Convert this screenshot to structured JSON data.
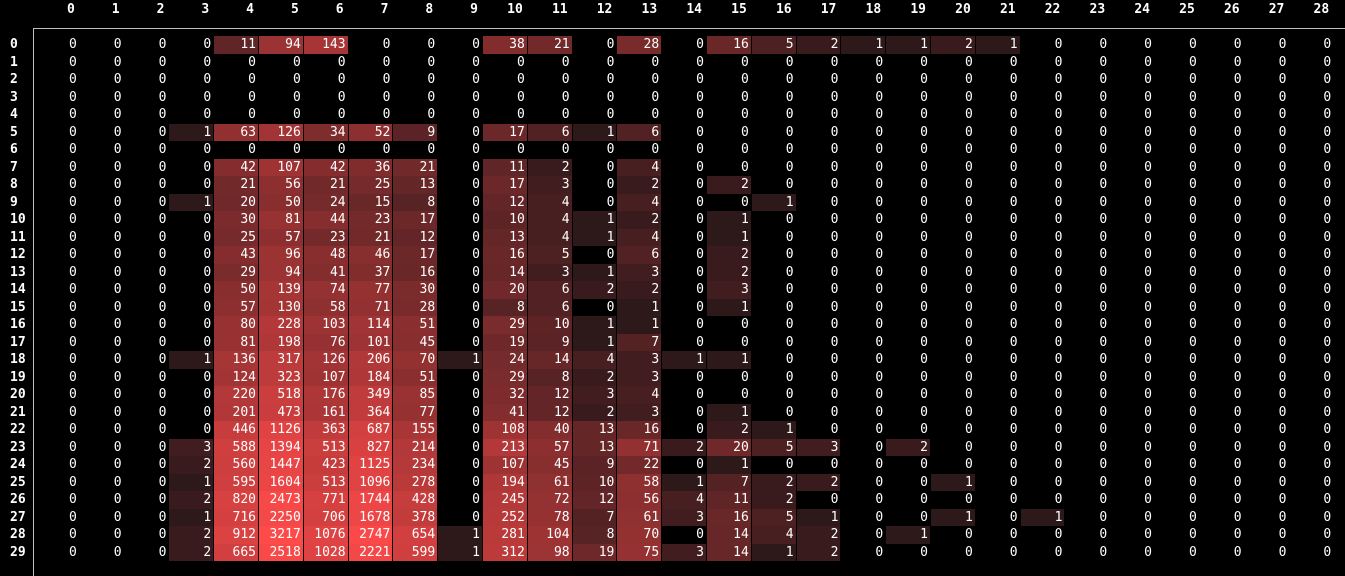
{
  "chart_data": {
    "type": "heatmap",
    "columns": [
      "0",
      "1",
      "2",
      "3",
      "4",
      "5",
      "6",
      "7",
      "8",
      "9",
      "10",
      "11",
      "12",
      "13",
      "14",
      "15",
      "16",
      "17",
      "18",
      "19",
      "20",
      "21",
      "22",
      "23",
      "24",
      "25",
      "26",
      "27",
      "28"
    ],
    "rows": [
      "0",
      "1",
      "2",
      "3",
      "4",
      "5",
      "6",
      "7",
      "8",
      "9",
      "10",
      "11",
      "12",
      "13",
      "14",
      "15",
      "16",
      "17",
      "18",
      "19",
      "20",
      "21",
      "22",
      "23",
      "24",
      "25",
      "26",
      "27",
      "28",
      "29"
    ],
    "values": [
      [
        0,
        0,
        0,
        0,
        11,
        94,
        143,
        0,
        0,
        0,
        38,
        21,
        0,
        28,
        0,
        16,
        5,
        2,
        1,
        1,
        2,
        1,
        0,
        0,
        0,
        0,
        0,
        0,
        0
      ],
      [
        0,
        0,
        0,
        0,
        0,
        0,
        0,
        0,
        0,
        0,
        0,
        0,
        0,
        0,
        0,
        0,
        0,
        0,
        0,
        0,
        0,
        0,
        0,
        0,
        0,
        0,
        0,
        0,
        0
      ],
      [
        0,
        0,
        0,
        0,
        0,
        0,
        0,
        0,
        0,
        0,
        0,
        0,
        0,
        0,
        0,
        0,
        0,
        0,
        0,
        0,
        0,
        0,
        0,
        0,
        0,
        0,
        0,
        0,
        0
      ],
      [
        0,
        0,
        0,
        0,
        0,
        0,
        0,
        0,
        0,
        0,
        0,
        0,
        0,
        0,
        0,
        0,
        0,
        0,
        0,
        0,
        0,
        0,
        0,
        0,
        0,
        0,
        0,
        0,
        0
      ],
      [
        0,
        0,
        0,
        0,
        0,
        0,
        0,
        0,
        0,
        0,
        0,
        0,
        0,
        0,
        0,
        0,
        0,
        0,
        0,
        0,
        0,
        0,
        0,
        0,
        0,
        0,
        0,
        0,
        0
      ],
      [
        0,
        0,
        0,
        1,
        63,
        126,
        34,
        52,
        9,
        0,
        17,
        6,
        1,
        6,
        0,
        0,
        0,
        0,
        0,
        0,
        0,
        0,
        0,
        0,
        0,
        0,
        0,
        0,
        0
      ],
      [
        0,
        0,
        0,
        0,
        0,
        0,
        0,
        0,
        0,
        0,
        0,
        0,
        0,
        0,
        0,
        0,
        0,
        0,
        0,
        0,
        0,
        0,
        0,
        0,
        0,
        0,
        0,
        0,
        0
      ],
      [
        0,
        0,
        0,
        0,
        42,
        107,
        42,
        36,
        21,
        0,
        11,
        2,
        0,
        4,
        0,
        0,
        0,
        0,
        0,
        0,
        0,
        0,
        0,
        0,
        0,
        0,
        0,
        0,
        0
      ],
      [
        0,
        0,
        0,
        0,
        21,
        56,
        21,
        25,
        13,
        0,
        17,
        3,
        0,
        2,
        0,
        2,
        0,
        0,
        0,
        0,
        0,
        0,
        0,
        0,
        0,
        0,
        0,
        0,
        0
      ],
      [
        0,
        0,
        0,
        1,
        20,
        50,
        24,
        15,
        8,
        0,
        12,
        4,
        0,
        4,
        0,
        0,
        1,
        0,
        0,
        0,
        0,
        0,
        0,
        0,
        0,
        0,
        0,
        0,
        0
      ],
      [
        0,
        0,
        0,
        0,
        30,
        81,
        44,
        23,
        17,
        0,
        10,
        4,
        1,
        2,
        0,
        1,
        0,
        0,
        0,
        0,
        0,
        0,
        0,
        0,
        0,
        0,
        0,
        0,
        0
      ],
      [
        0,
        0,
        0,
        0,
        25,
        57,
        23,
        21,
        12,
        0,
        13,
        4,
        1,
        4,
        0,
        1,
        0,
        0,
        0,
        0,
        0,
        0,
        0,
        0,
        0,
        0,
        0,
        0,
        0
      ],
      [
        0,
        0,
        0,
        0,
        43,
        96,
        48,
        46,
        17,
        0,
        16,
        5,
        0,
        6,
        0,
        2,
        0,
        0,
        0,
        0,
        0,
        0,
        0,
        0,
        0,
        0,
        0,
        0,
        0
      ],
      [
        0,
        0,
        0,
        0,
        29,
        94,
        41,
        37,
        16,
        0,
        14,
        3,
        1,
        3,
        0,
        2,
        0,
        0,
        0,
        0,
        0,
        0,
        0,
        0,
        0,
        0,
        0,
        0,
        0
      ],
      [
        0,
        0,
        0,
        0,
        50,
        139,
        74,
        77,
        30,
        0,
        20,
        6,
        2,
        2,
        0,
        3,
        0,
        0,
        0,
        0,
        0,
        0,
        0,
        0,
        0,
        0,
        0,
        0,
        0
      ],
      [
        0,
        0,
        0,
        0,
        57,
        130,
        58,
        71,
        28,
        0,
        8,
        6,
        0,
        1,
        0,
        1,
        0,
        0,
        0,
        0,
        0,
        0,
        0,
        0,
        0,
        0,
        0,
        0,
        0
      ],
      [
        0,
        0,
        0,
        0,
        80,
        228,
        103,
        114,
        51,
        0,
        29,
        10,
        1,
        1,
        0,
        0,
        0,
        0,
        0,
        0,
        0,
        0,
        0,
        0,
        0,
        0,
        0,
        0,
        0
      ],
      [
        0,
        0,
        0,
        0,
        81,
        198,
        76,
        101,
        45,
        0,
        19,
        9,
        1,
        7,
        0,
        0,
        0,
        0,
        0,
        0,
        0,
        0,
        0,
        0,
        0,
        0,
        0,
        0,
        0
      ],
      [
        0,
        0,
        0,
        1,
        136,
        317,
        126,
        206,
        70,
        1,
        24,
        14,
        4,
        3,
        1,
        1,
        0,
        0,
        0,
        0,
        0,
        0,
        0,
        0,
        0,
        0,
        0,
        0,
        0
      ],
      [
        0,
        0,
        0,
        0,
        124,
        323,
        107,
        184,
        51,
        0,
        29,
        8,
        2,
        3,
        0,
        0,
        0,
        0,
        0,
        0,
        0,
        0,
        0,
        0,
        0,
        0,
        0,
        0,
        0
      ],
      [
        0,
        0,
        0,
        0,
        220,
        518,
        176,
        349,
        85,
        0,
        32,
        12,
        3,
        4,
        0,
        0,
        0,
        0,
        0,
        0,
        0,
        0,
        0,
        0,
        0,
        0,
        0,
        0,
        0
      ],
      [
        0,
        0,
        0,
        0,
        201,
        473,
        161,
        364,
        77,
        0,
        41,
        12,
        2,
        3,
        0,
        1,
        0,
        0,
        0,
        0,
        0,
        0,
        0,
        0,
        0,
        0,
        0,
        0,
        0
      ],
      [
        0,
        0,
        0,
        0,
        446,
        1126,
        363,
        687,
        155,
        0,
        108,
        40,
        13,
        16,
        0,
        2,
        1,
        0,
        0,
        0,
        0,
        0,
        0,
        0,
        0,
        0,
        0,
        0,
        0
      ],
      [
        0,
        0,
        0,
        3,
        588,
        1394,
        513,
        827,
        214,
        0,
        213,
        57,
        13,
        71,
        2,
        20,
        5,
        3,
        0,
        2,
        0,
        0,
        0,
        0,
        0,
        0,
        0,
        0,
        0
      ],
      [
        0,
        0,
        0,
        2,
        560,
        1447,
        423,
        1125,
        234,
        0,
        107,
        45,
        9,
        22,
        0,
        1,
        0,
        0,
        0,
        0,
        0,
        0,
        0,
        0,
        0,
        0,
        0,
        0,
        0
      ],
      [
        0,
        0,
        0,
        1,
        595,
        1604,
        513,
        1096,
        278,
        0,
        194,
        61,
        10,
        58,
        1,
        7,
        2,
        2,
        0,
        0,
        1,
        0,
        0,
        0,
        0,
        0,
        0,
        0,
        0
      ],
      [
        0,
        0,
        0,
        2,
        820,
        2473,
        771,
        1744,
        428,
        0,
        245,
        72,
        12,
        56,
        4,
        11,
        2,
        0,
        0,
        0,
        0,
        0,
        0,
        0,
        0,
        0,
        0,
        0,
        0
      ],
      [
        0,
        0,
        0,
        1,
        716,
        2250,
        706,
        1678,
        378,
        0,
        252,
        78,
        7,
        61,
        3,
        16,
        5,
        1,
        0,
        0,
        1,
        0,
        1,
        0,
        0,
        0,
        0,
        0,
        0
      ],
      [
        0,
        0,
        0,
        2,
        912,
        3217,
        1076,
        2747,
        654,
        1,
        281,
        104,
        8,
        70,
        0,
        14,
        4,
        2,
        0,
        1,
        0,
        0,
        0,
        0,
        0,
        0,
        0,
        0,
        0
      ],
      [
        0,
        0,
        0,
        2,
        665,
        2518,
        1028,
        2221,
        599,
        1,
        312,
        98,
        19,
        75,
        3,
        14,
        1,
        2,
        0,
        0,
        0,
        0,
        0,
        0,
        0,
        0,
        0,
        0,
        0
      ]
    ],
    "colors": {
      "background": "#000000",
      "low": "#1a1416",
      "high": "#ff4a4a",
      "text": "#ffffff",
      "axis_line": "#bfbfbf"
    },
    "color_scale": "log"
  }
}
